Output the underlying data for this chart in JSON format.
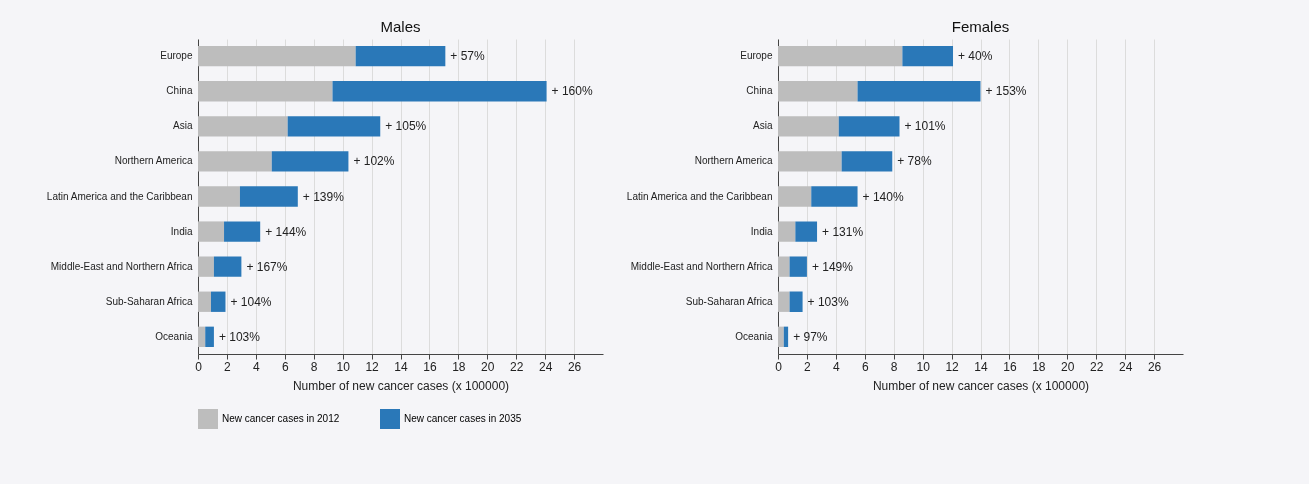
{
  "chart_data": [
    {
      "type": "bar",
      "title": "Males",
      "xlabel": "Number of new cancer cases (x 100000)",
      "orientation": "horizontal",
      "stacked": true,
      "categories": [
        "Europe",
        "China",
        "Asia",
        "Northern America",
        "Latin America and the Caribbean",
        "India",
        "Middle-East and Northern Africa",
        "Sub-Saharan Africa",
        "Oceania"
      ],
      "series": [
        {
          "name": "New cancer cases in 2012",
          "color": "#bdbdbd",
          "values": [
            10.9,
            9.3,
            6.2,
            5.1,
            2.9,
            1.8,
            1.1,
            0.9,
            0.5
          ]
        },
        {
          "name": "New cancer cases in 2035",
          "color": "#2a78b8",
          "values": [
            6.2,
            14.8,
            6.4,
            5.3,
            4.0,
            2.5,
            1.9,
            1.0,
            0.6
          ]
        }
      ],
      "xlim": [
        0,
        28
      ],
      "xticks": [
        0,
        2,
        4,
        6,
        8,
        10,
        12,
        14,
        16,
        18,
        20,
        22,
        24,
        26
      ],
      "grid": "x",
      "legend": "bottom",
      "annotations": [
        {
          "text": "+ 57%",
          "x": 17.1,
          "y": "Europe"
        },
        {
          "text": "+ 160%",
          "x": 24.1,
          "y": "China"
        },
        {
          "text": "+ 105%",
          "x": 12.6,
          "y": "Asia"
        },
        {
          "text": "+ 102%",
          "x": 10.4,
          "y": "Northern America"
        },
        {
          "text": "+ 139%",
          "x": 6.9,
          "y": "Latin America and the Caribbean"
        },
        {
          "text": "+ 144%",
          "x": 4.3,
          "y": "India"
        },
        {
          "text": "+ 167%",
          "x": 3.0,
          "y": "Middle-East and Northern Africa"
        },
        {
          "text": "+ 104%",
          "x": 1.9,
          "y": "Sub-Saharan Africa"
        },
        {
          "text": "+ 103%",
          "x": 1.1,
          "y": "Oceania"
        }
      ]
    },
    {
      "type": "bar",
      "title": "Females",
      "xlabel": "Number of new cancer cases (x 100000)",
      "orientation": "horizontal",
      "stacked": true,
      "categories": [
        "Europe",
        "China",
        "Asia",
        "Northern America",
        "Latin America and the Caribbean",
        "India",
        "Middle-East and Northern Africa",
        "Sub-Saharan Africa",
        "Oceania"
      ],
      "series": [
        {
          "name": "New cancer cases in 2012",
          "color": "#bdbdbd",
          "values": [
            8.6,
            5.5,
            4.2,
            4.4,
            2.3,
            1.2,
            0.8,
            0.8,
            0.4
          ]
        },
        {
          "name": "New cancer cases in 2035",
          "color": "#2a78b8",
          "values": [
            3.5,
            8.5,
            4.2,
            3.5,
            3.2,
            1.5,
            1.2,
            0.9,
            0.3
          ]
        }
      ],
      "xlim": [
        0,
        28
      ],
      "xticks": [
        0,
        2,
        4,
        6,
        8,
        10,
        12,
        14,
        16,
        18,
        20,
        22,
        24,
        26
      ],
      "grid": "x",
      "legend": "bottom",
      "annotations": [
        {
          "text": "+ 40%",
          "x": 12.1,
          "y": "Europe"
        },
        {
          "text": "+ 153%",
          "x": 14.0,
          "y": "China"
        },
        {
          "text": "+ 101%",
          "x": 8.4,
          "y": "Asia"
        },
        {
          "text": "+ 78%",
          "x": 7.9,
          "y": "Northern America"
        },
        {
          "text": "+ 140%",
          "x": 5.5,
          "y": "Latin America and the Caribbean"
        },
        {
          "text": "+ 131%",
          "x": 2.7,
          "y": "India"
        },
        {
          "text": "+ 149%",
          "x": 2.0,
          "y": "Middle-East and Northern Africa"
        },
        {
          "text": "+ 103%",
          "x": 1.7,
          "y": "Sub-Saharan Africa"
        },
        {
          "text": "+ 97%",
          "x": 0.7,
          "y": "Oceania"
        }
      ]
    }
  ]
}
